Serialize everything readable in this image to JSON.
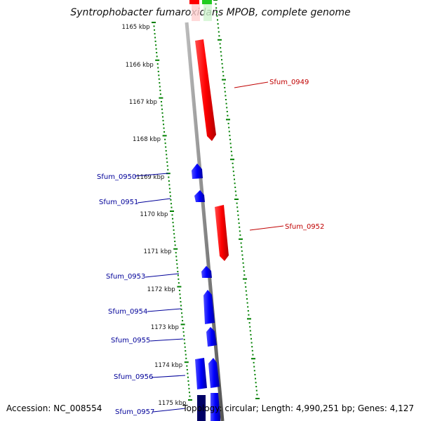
{
  "title": "Syntrophobacter fumaroxidans MPOB, complete genome",
  "footer": {
    "accession": "Accession: NC_008554",
    "stats": "Topology: circular; Length: 4,990,251 bp; Genes: 4,127"
  },
  "colors": {
    "backbone": "#8a8a8a",
    "forward_gene": "#ff0000",
    "reverse_gene": "#0000ff",
    "tick": "#008000",
    "forward_label": "#c00000",
    "reverse_label": "#000099"
  },
  "ticks": [
    {
      "label": "1165 kbp"
    },
    {
      "label": "1166 kbp"
    },
    {
      "label": "1167 kbp"
    },
    {
      "label": "1168 kbp"
    },
    {
      "label": "1169 kbp"
    },
    {
      "label": "1170 kbp"
    },
    {
      "label": "1171 kbp"
    },
    {
      "label": "1172 kbp"
    },
    {
      "label": "1173 kbp"
    },
    {
      "label": "1174 kbp"
    },
    {
      "label": "1175 kbp"
    }
  ],
  "genes_forward": [
    {
      "label": "Sfum_0949"
    },
    {
      "label": "Sfum_0952"
    }
  ],
  "genes_reverse": [
    {
      "label": "Sfum_0950"
    },
    {
      "label": "Sfum_0951"
    },
    {
      "label": "Sfum_0953"
    },
    {
      "label": "Sfum_0954"
    },
    {
      "label": "Sfum_0955"
    },
    {
      "label": "Sfum_0956"
    },
    {
      "label": "Sfum_0957"
    }
  ]
}
